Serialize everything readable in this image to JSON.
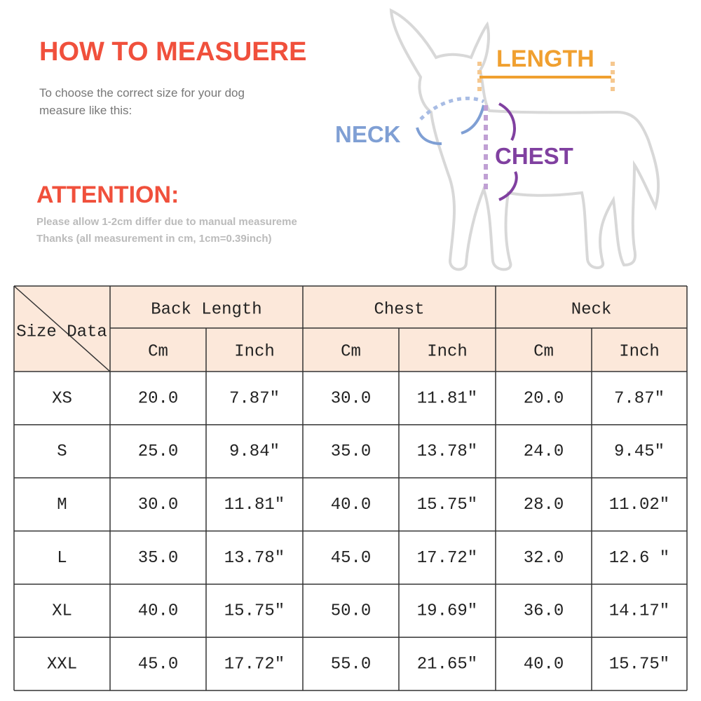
{
  "header": {
    "title": "HOW TO MEASUERE",
    "lines": [
      "To choose the correct size for your dog",
      "measure like this:"
    ]
  },
  "attention": {
    "title": "ATTENTION:",
    "lines": [
      "Please allow 1-2cm differ due to manual measureme",
      "Thanks (all measurement in cm, 1cm=0.39inch)"
    ]
  },
  "diagram": {
    "labels": [
      "LENGTH",
      "NECK",
      "CHEST"
    ]
  },
  "table": {
    "corner": "Size Data",
    "groups": [
      "Back Length",
      "Chest",
      "Neck"
    ],
    "units": [
      "Cm",
      "Inch",
      "Cm",
      "Inch",
      "Cm",
      "Inch"
    ],
    "rows": [
      [
        "XS",
        "20.0",
        "7.87″",
        "30.0",
        "11.81″",
        "20.0",
        "7.87″"
      ],
      [
        "S",
        "25.0",
        "9.84″",
        "35.0",
        "13.78″",
        "24.0",
        "9.45″"
      ],
      [
        "M",
        "30.0",
        "11.81″",
        "40.0",
        "15.75″",
        "28.0",
        "11.02″"
      ],
      [
        "L",
        "35.0",
        "13.78″",
        "45.0",
        "17.72″",
        "32.0",
        "12.6 ″"
      ],
      [
        "XL",
        "40.0",
        "15.75″",
        "50.0",
        "19.69″",
        "36.0",
        "14.17″"
      ],
      [
        "XXL",
        "45.0",
        "17.72″",
        "55.0",
        "21.65″",
        "40.0",
        "15.75″"
      ]
    ]
  }
}
